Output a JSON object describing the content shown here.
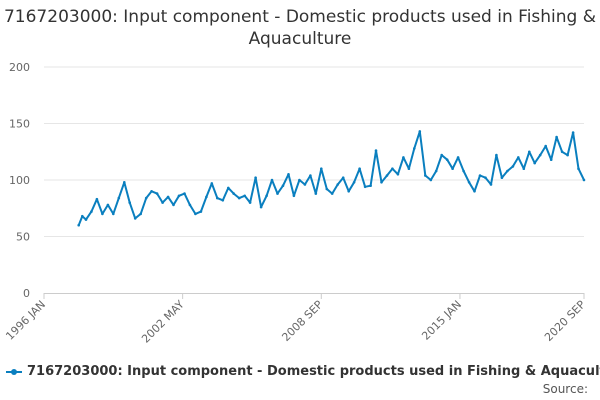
{
  "chart_data": {
    "type": "line",
    "title": "7167203000: Input component - Domestic products used in Fishing & Aquaculture",
    "xlabel": "",
    "ylabel": "",
    "x_ticks": [
      "1996 JAN",
      "2002 MAY",
      "2008 SEP",
      "2015 JAN",
      "2020 SEP"
    ],
    "y_ticks": [
      0,
      50,
      100,
      150,
      200
    ],
    "ylim": [
      0,
      200
    ],
    "xlim": [
      "1996-01",
      "2020-09"
    ],
    "grid": true,
    "legend_position": "bottom-left",
    "series": [
      {
        "name": "7167203000: Input component - Domestic products used in Fishing & Aquaculture",
        "color": "#0a7fbf",
        "points": [
          [
            "1997-08",
            60
          ],
          [
            "1997-10",
            68
          ],
          [
            "1997-12",
            65
          ],
          [
            "1998-03",
            72
          ],
          [
            "1998-06",
            83
          ],
          [
            "1998-09",
            70
          ],
          [
            "1998-12",
            78
          ],
          [
            "1999-03",
            70
          ],
          [
            "1999-06",
            84
          ],
          [
            "1999-09",
            98
          ],
          [
            "1999-12",
            80
          ],
          [
            "2000-03",
            66
          ],
          [
            "2000-06",
            70
          ],
          [
            "2000-09",
            84
          ],
          [
            "2000-12",
            90
          ],
          [
            "2001-03",
            88
          ],
          [
            "2001-06",
            80
          ],
          [
            "2001-09",
            85
          ],
          [
            "2001-12",
            78
          ],
          [
            "2002-03",
            86
          ],
          [
            "2002-06",
            88
          ],
          [
            "2002-09",
            78
          ],
          [
            "2002-12",
            70
          ],
          [
            "2003-03",
            72
          ],
          [
            "2003-06",
            85
          ],
          [
            "2003-09",
            97
          ],
          [
            "2003-12",
            84
          ],
          [
            "2004-03",
            82
          ],
          [
            "2004-06",
            93
          ],
          [
            "2004-09",
            88
          ],
          [
            "2004-12",
            84
          ],
          [
            "2005-03",
            86
          ],
          [
            "2005-06",
            80
          ],
          [
            "2005-09",
            102
          ],
          [
            "2005-12",
            76
          ],
          [
            "2006-03",
            86
          ],
          [
            "2006-06",
            100
          ],
          [
            "2006-09",
            88
          ],
          [
            "2006-12",
            95
          ],
          [
            "2007-03",
            105
          ],
          [
            "2007-06",
            86
          ],
          [
            "2007-09",
            100
          ],
          [
            "2007-12",
            96
          ],
          [
            "2008-03",
            104
          ],
          [
            "2008-06",
            88
          ],
          [
            "2008-09",
            110
          ],
          [
            "2008-12",
            92
          ],
          [
            "2009-03",
            88
          ],
          [
            "2009-06",
            96
          ],
          [
            "2009-09",
            102
          ],
          [
            "2009-12",
            90
          ],
          [
            "2010-03",
            98
          ],
          [
            "2010-06",
            110
          ],
          [
            "2010-09",
            94
          ],
          [
            "2010-12",
            95
          ],
          [
            "2011-03",
            126
          ],
          [
            "2011-06",
            98
          ],
          [
            "2011-09",
            104
          ],
          [
            "2011-12",
            110
          ],
          [
            "2012-03",
            105
          ],
          [
            "2012-06",
            120
          ],
          [
            "2012-09",
            110
          ],
          [
            "2012-12",
            128
          ],
          [
            "2013-03",
            143
          ],
          [
            "2013-06",
            104
          ],
          [
            "2013-09",
            100
          ],
          [
            "2013-12",
            108
          ],
          [
            "2014-03",
            122
          ],
          [
            "2014-06",
            118
          ],
          [
            "2014-09",
            110
          ],
          [
            "2014-12",
            120
          ],
          [
            "2015-03",
            108
          ],
          [
            "2015-06",
            98
          ],
          [
            "2015-09",
            90
          ],
          [
            "2015-12",
            104
          ],
          [
            "2016-03",
            102
          ],
          [
            "2016-06",
            96
          ],
          [
            "2016-09",
            122
          ],
          [
            "2016-12",
            102
          ],
          [
            "2017-03",
            108
          ],
          [
            "2017-06",
            112
          ],
          [
            "2017-09",
            120
          ],
          [
            "2017-12",
            110
          ],
          [
            "2018-03",
            125
          ],
          [
            "2018-06",
            115
          ],
          [
            "2018-09",
            122
          ],
          [
            "2018-12",
            130
          ],
          [
            "2019-03",
            118
          ],
          [
            "2019-06",
            138
          ],
          [
            "2019-09",
            125
          ],
          [
            "2019-12",
            122
          ],
          [
            "2020-03",
            142
          ],
          [
            "2020-06",
            110
          ],
          [
            "2020-09",
            100
          ]
        ]
      }
    ],
    "source_label": "Source:"
  }
}
